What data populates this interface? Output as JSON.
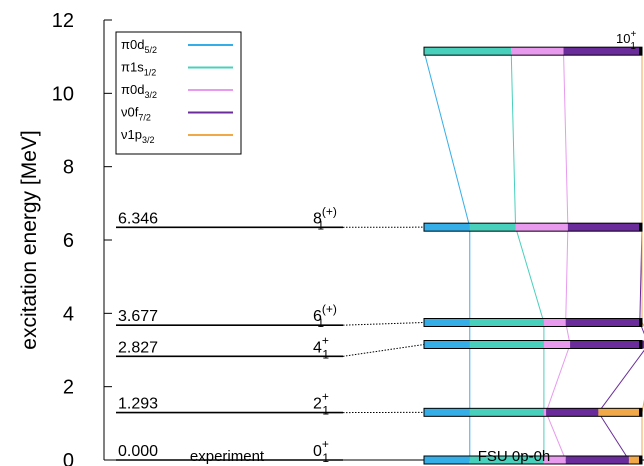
{
  "chart_data": {
    "type": "level-scheme",
    "ylabel": "excitation energy [MeV]",
    "ylim": [
      0,
      12
    ],
    "yticks": [
      "0",
      "2",
      "4",
      "6",
      "8",
      "10",
      "12"
    ],
    "columns": [
      "experiment",
      "FSU 0p-0h"
    ],
    "experiment_levels": [
      {
        "energy": 0.0,
        "energy_label": "0.000",
        "spin": "0",
        "parity": "+",
        "index": "1"
      },
      {
        "energy": 1.293,
        "energy_label": "1.293",
        "spin": "2",
        "parity": "+",
        "index": "1"
      },
      {
        "energy": 2.827,
        "energy_label": "2.827",
        "spin": "4",
        "parity": "+",
        "index": "1"
      },
      {
        "energy": 3.677,
        "energy_label": "3.677",
        "spin": "6",
        "parity": "(+)",
        "index": "1"
      },
      {
        "energy": 6.346,
        "energy_label": "6.346",
        "spin": "8",
        "parity": "(+)",
        "index": "1"
      }
    ],
    "orbitals": [
      {
        "orbital": "π0d",
        "sub": "5/2",
        "color": "#35aee8"
      },
      {
        "orbital": "π1s",
        "sub": "1/2",
        "color": "#48d0bc"
      },
      {
        "orbital": "π0d",
        "sub": "3/2",
        "color": "#e89aee"
      },
      {
        "orbital": "ν0f",
        "sub": "7/2",
        "color": "#6a2c9a"
      },
      {
        "orbital": "ν1p",
        "sub": "3/2",
        "color": "#f0a848"
      }
    ],
    "theory_levels": [
      {
        "energy": 0.0,
        "fractions": [
          0.21,
          0.34,
          0.1,
          0.29,
          0.06
        ]
      },
      {
        "energy": 1.3,
        "fractions": [
          0.21,
          0.34,
          0.01,
          0.24,
          0.2
        ]
      },
      {
        "energy": 3.15,
        "fractions": [
          0.21,
          0.34,
          0.12,
          0.36,
          0.03
        ]
      },
      {
        "energy": 3.75,
        "fractions": [
          0.21,
          0.34,
          0.1,
          0.34,
          0.01
        ]
      },
      {
        "energy": 6.35,
        "fractions": [
          0.21,
          0.21,
          0.24,
          0.34,
          0.0
        ]
      },
      {
        "energy": 11.15,
        "fractions": [
          0.0,
          0.4,
          0.24,
          0.36,
          0.0
        ],
        "label": "10",
        "label_parity": "+",
        "label_index": "1"
      }
    ],
    "connections": [
      [
        0,
        0
      ],
      [
        1,
        1
      ],
      [
        2,
        2
      ],
      [
        3,
        3
      ],
      [
        4,
        4
      ]
    ]
  }
}
